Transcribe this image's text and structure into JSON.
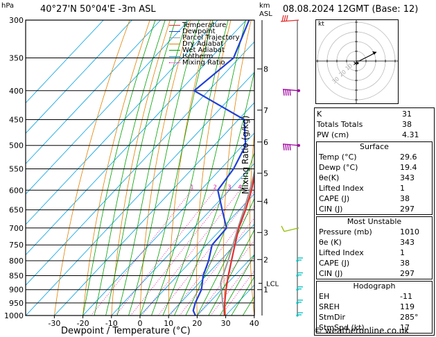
{
  "header": {
    "location": "40°27'N  50°04'E  -3m  ASL",
    "datetime": "08.08.2024  12GMT  (Base: 12)",
    "units_hpa": "hPa",
    "units_km": "km",
    "units_asl": "ASL"
  },
  "chart_data": {
    "type": "skew-t",
    "xlabel": "Dewpoint / Temperature (°C)",
    "ylabel_right": "Mixing Ratio (g/kg)",
    "pressure_ticks": [
      300,
      350,
      400,
      450,
      500,
      550,
      600,
      650,
      700,
      750,
      800,
      850,
      900,
      950,
      1000
    ],
    "temperature_ticks": [
      -30,
      -20,
      -10,
      0,
      10,
      20,
      30,
      40
    ],
    "km_ticks": [
      {
        "label": "8",
        "p": 366
      },
      {
        "label": "7",
        "p": 433
      },
      {
        "label": "6",
        "p": 493
      },
      {
        "label": "5",
        "p": 560
      },
      {
        "label": "4",
        "p": 628
      },
      {
        "label": "3",
        "p": 713
      },
      {
        "label": "2",
        "p": 796
      },
      {
        "label": "1",
        "p": 900
      }
    ],
    "lcl_label": "LCL",
    "lcl_p": 877,
    "mixing_ratio_labels": [
      "1",
      "2",
      "3",
      "4",
      "6",
      "8",
      "10",
      "15",
      "20",
      "25"
    ],
    "mixing_ratio_values": [
      1,
      2,
      3,
      4,
      6,
      8,
      10,
      15,
      20,
      25
    ],
    "legend": [
      "Temperature",
      "Dewpoint",
      "Parcel Trajectory",
      "Dry Adiabat",
      "Wet Adiabat",
      "Isotherm",
      "Mixing Ratio"
    ],
    "colors": {
      "temperature": "#e03030",
      "dewpoint": "#1f3fd8",
      "parcel": "#999999",
      "dry_adiabat": "#e08000",
      "wet_adiabat": "#00a000",
      "isotherm": "#00a0e0",
      "mixing_ratio": "#e000a0",
      "wind_barb_high": "#a000a0",
      "wind_barb_mid": "#90c000",
      "wind_barb_low": "#00c0c0"
    },
    "temperature_profile": [
      {
        "p": 1000,
        "t": 29.6
      },
      {
        "p": 950,
        "t": 25.5
      },
      {
        "p": 900,
        "t": 21.6
      },
      {
        "p": 850,
        "t": 17.8
      },
      {
        "p": 800,
        "t": 14.0
      },
      {
        "p": 750,
        "t": 10.0
      },
      {
        "p": 700,
        "t": 5.8
      },
      {
        "p": 650,
        "t": 2.2
      },
      {
        "p": 600,
        "t": -2.2
      },
      {
        "p": 550,
        "t": -7.6
      },
      {
        "p": 500,
        "t": -12.5
      },
      {
        "p": 450,
        "t": -18.5
      },
      {
        "p": 400,
        "t": -24.5
      },
      {
        "p": 350,
        "t": -31.0
      }
    ],
    "dewpoint_profile": [
      {
        "p": 1000,
        "t": 19.4
      },
      {
        "p": 980,
        "t": 17.0
      },
      {
        "p": 950,
        "t": 15.2
      },
      {
        "p": 900,
        "t": 13.0
      },
      {
        "p": 850,
        "t": 9.0
      },
      {
        "p": 800,
        "t": 6.0
      },
      {
        "p": 750,
        "t": 2.0
      },
      {
        "p": 700,
        "t": 1.5
      },
      {
        "p": 650,
        "t": -6.0
      },
      {
        "p": 600,
        "t": -14.0
      },
      {
        "p": 550,
        "t": -15.5
      },
      {
        "p": 500,
        "t": -19.0
      },
      {
        "p": 450,
        "t": -28.0
      },
      {
        "p": 400,
        "t": -55.0
      },
      {
        "p": 350,
        "t": -52.0
      },
      {
        "p": 300,
        "t": -59.0
      }
    ],
    "parcel_profile": [
      {
        "p": 1000,
        "t": 29.6
      },
      {
        "p": 950,
        "t": 24.8
      },
      {
        "p": 900,
        "t": 20.0
      },
      {
        "p": 877,
        "t": 17.6
      },
      {
        "p": 850,
        "t": 15.9
      },
      {
        "p": 800,
        "t": 12.8
      },
      {
        "p": 750,
        "t": 9.3
      },
      {
        "p": 700,
        "t": 5.5
      },
      {
        "p": 650,
        "t": 1.6
      },
      {
        "p": 600,
        "t": -2.8
      },
      {
        "p": 550,
        "t": -7.9
      },
      {
        "p": 500,
        "t": -13.6
      },
      {
        "p": 450,
        "t": -20.3
      }
    ],
    "wind_barbs": [
      {
        "p": 300,
        "group": "top"
      },
      {
        "p": 400,
        "group": "high"
      },
      {
        "p": 500,
        "group": "high"
      },
      {
        "p": 700,
        "group": "mid"
      },
      {
        "p": 800,
        "group": "low"
      },
      {
        "p": 850,
        "group": "low"
      },
      {
        "p": 900,
        "group": "low"
      },
      {
        "p": 950,
        "group": "low"
      },
      {
        "p": 1000,
        "group": "low"
      }
    ]
  },
  "hodograph": {
    "label": "kt",
    "ring_labels": [
      "10",
      "20",
      "30"
    ]
  },
  "indices": [
    {
      "label": "K",
      "value": "31"
    },
    {
      "label": "Totals Totals",
      "value": "38"
    },
    {
      "label": "PW (cm)",
      "value": "4.31"
    }
  ],
  "surface": {
    "title": "Surface",
    "rows": [
      {
        "label": "Temp (°C)",
        "value": "29.6"
      },
      {
        "label": "Dewp (°C)",
        "value": "19.4"
      },
      {
        "label": "θe(K)",
        "value": "343"
      },
      {
        "label": "Lifted Index",
        "value": "1"
      },
      {
        "label": "CAPE (J)",
        "value": "38"
      },
      {
        "label": "CIN (J)",
        "value": "297"
      }
    ]
  },
  "most_unstable": {
    "title": "Most Unstable",
    "rows": [
      {
        "label": "Pressure (mb)",
        "value": "1010"
      },
      {
        "label": "θe (K)",
        "value": "343"
      },
      {
        "label": "Lifted Index",
        "value": "1"
      },
      {
        "label": "CAPE (J)",
        "value": "38"
      },
      {
        "label": "CIN (J)",
        "value": "297"
      }
    ]
  },
  "hodo_table": {
    "title": "Hodograph",
    "rows": [
      {
        "label": "EH",
        "value": "-11"
      },
      {
        "label": "SREH",
        "value": "119"
      },
      {
        "label": "StmDir",
        "value": "285°"
      },
      {
        "label": "StmSpd (kt)",
        "value": "17"
      }
    ]
  },
  "footer": {
    "credit": "© weatheronline.co.uk"
  }
}
